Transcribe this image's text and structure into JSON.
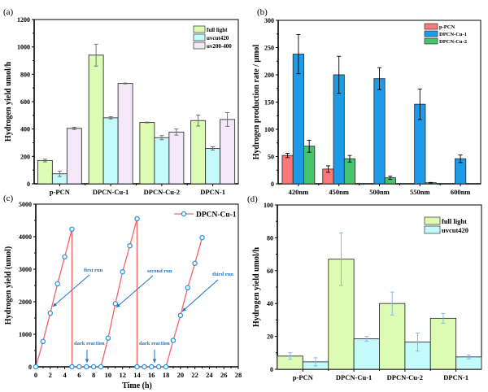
{
  "chart_data": [
    {
      "panel": "(a)",
      "type": "bar",
      "title": "",
      "xlabel": "",
      "ylabel": "Hydrogen yield umol/h",
      "ylim": [
        0,
        1200
      ],
      "yticks": [
        0,
        200,
        400,
        600,
        800,
        1000,
        1200
      ],
      "categories": [
        "p-PCN",
        "DPCN-Cu-1",
        "DPCN-Cu-2",
        "DPCN-1"
      ],
      "legend_position": "top-right",
      "series": [
        {
          "name": "full light",
          "color": "#dcfcb4",
          "values": [
            170,
            940,
            448,
            462
          ],
          "errors": [
            10,
            80,
            3,
            40
          ]
        },
        {
          "name": "uvcut420",
          "color": "#c4fafa",
          "values": [
            73,
            482,
            337,
            258
          ],
          "errors": [
            20,
            8,
            15,
            12
          ]
        },
        {
          "name": "uv200-400",
          "color": "#f4e8f8",
          "values": [
            405,
            733,
            378,
            470
          ],
          "errors": [
            8,
            3,
            22,
            50
          ]
        }
      ]
    },
    {
      "panel": "(b)",
      "type": "bar",
      "title": "",
      "xlabel": "",
      "ylabel": "Hydrogen production rate / μmol",
      "ylim": [
        0,
        300
      ],
      "yticks": [
        0,
        50,
        100,
        150,
        200,
        250,
        300
      ],
      "categories": [
        "420nm",
        "450nm",
        "500nm",
        "550nm",
        "600nm"
      ],
      "legend_position": "top-right",
      "series": [
        {
          "name": "p-PCN",
          "color": "#fa7878",
          "values": [
            52,
            27,
            null,
            null,
            null
          ],
          "errors": [
            4,
            6,
            null,
            null,
            null
          ]
        },
        {
          "name": "DPCN-Cu-1",
          "color": "#1e9be8",
          "values": [
            238,
            200,
            193,
            146,
            46
          ],
          "errors": [
            36,
            34,
            20,
            28,
            7
          ]
        },
        {
          "name": "DPCN-Cu-2",
          "color": "#46c46e",
          "values": [
            69,
            46,
            11,
            2,
            null
          ],
          "errors": [
            11,
            6,
            3,
            0.5,
            null
          ]
        }
      ]
    },
    {
      "panel": "(c)",
      "type": "line",
      "title": "",
      "xlabel": "Time (h)",
      "ylabel": "Hydrogen yield (umol)",
      "xlim": [
        0,
        28
      ],
      "ylim": [
        0,
        5000
      ],
      "xticks": [
        0,
        2,
        4,
        6,
        8,
        10,
        12,
        14,
        16,
        18,
        20,
        22,
        24,
        26,
        28
      ],
      "yticks": [
        0,
        1000,
        2000,
        3000,
        4000,
        5000
      ],
      "legend_position": "top-right",
      "series": [
        {
          "name": "DPCN-Cu-1",
          "line_color": "#f46464",
          "marker_color": "#1e90d8",
          "x": [
            0,
            1,
            2,
            3,
            4,
            5,
            5,
            6,
            7,
            8,
            9,
            10,
            11,
            12,
            13,
            14,
            14,
            15,
            16,
            17,
            18,
            19,
            20,
            21,
            22,
            23
          ],
          "y": [
            0,
            780,
            1650,
            2550,
            3380,
            4230,
            0,
            0,
            0,
            0,
            0,
            880,
            1940,
            2920,
            3720,
            4550,
            0,
            0,
            0,
            0,
            0,
            810,
            1580,
            2430,
            3180,
            3970
          ]
        }
      ],
      "annotations": [
        {
          "text": "first run",
          "color": "#1e72c8"
        },
        {
          "text": "second run",
          "color": "#1e72c8"
        },
        {
          "text": "third run",
          "color": "#1e72c8"
        },
        {
          "text": "dark reaction",
          "color": "#1e72c8"
        },
        {
          "text": "dark reaction",
          "color": "#1e72c8"
        }
      ]
    },
    {
      "panel": "(d)",
      "type": "bar",
      "title": "",
      "xlabel": "",
      "ylabel": "Hydrogen yield umol/h",
      "ylim": [
        0,
        100
      ],
      "yticks": [
        0,
        20,
        40,
        60,
        80,
        100
      ],
      "categories": [
        "p-PCN",
        "DPCN-Cu-1",
        "DPCN-Cu-2",
        "DPCN-1"
      ],
      "legend_position": "top-right",
      "series": [
        {
          "name": "full light",
          "color": "#dcfcb4",
          "values": [
            8,
            67,
            40,
            31
          ],
          "errors": [
            2,
            16,
            7,
            3
          ]
        },
        {
          "name": "uvcut420",
          "color": "#c4fafa",
          "values": [
            4.5,
            18.5,
            16.5,
            7.5
          ],
          "errors": [
            2.5,
            1.5,
            5.5,
            1.2
          ]
        }
      ]
    }
  ]
}
